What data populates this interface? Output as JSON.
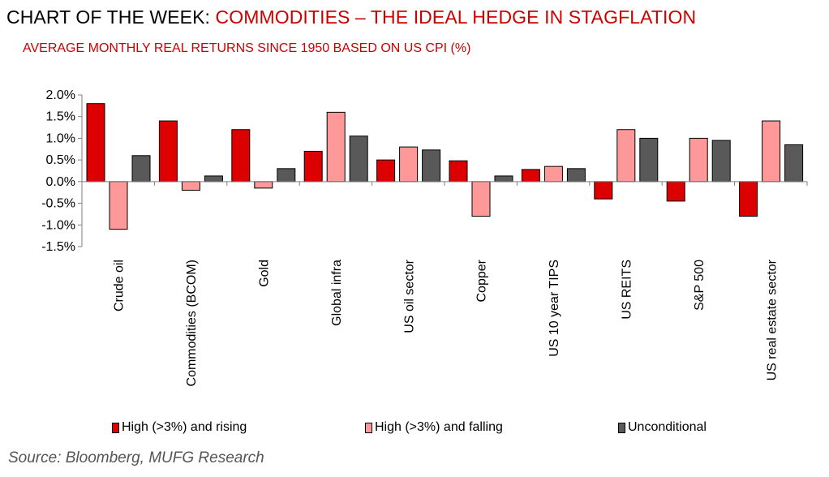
{
  "header": {
    "title_prefix": "CHART OF THE WEEK:",
    "title_highlight": "COMMODITIES – THE IDEAL HEDGE IN STAGFLATION",
    "subtitle": "AVERAGE MONTHLY REAL RETURNS SINCE 1950 BASED ON US CPI (%)"
  },
  "footer": {
    "source": "Source: Bloomberg, MUFG Research"
  },
  "colors": {
    "title_accent": "#cc0000",
    "series_rising": "#dd0000",
    "series_falling": "#ff9999",
    "series_unconditional": "#595959",
    "bar_border": "#000000"
  },
  "chart_data": {
    "type": "bar",
    "title": "",
    "xlabel": "",
    "ylabel": "",
    "ylim": [
      -1.5,
      2.0
    ],
    "ytick_step": 0.5,
    "ytick_labels": [
      "2.0%",
      "1.5%",
      "1.0%",
      "0.5%",
      "0.0%",
      "-0.5%",
      "-1.0%",
      "-1.5%"
    ],
    "grid": false,
    "legend_position": "bottom",
    "categories": [
      "Crude oil",
      "Commodities (BCOM)",
      "Gold",
      "Global infra",
      "US oil sector",
      "Copper",
      "US 10 year TIPS",
      "US REITS",
      "S&P 500",
      "US real estate sector"
    ],
    "series": [
      {
        "name": "High (>3%) and rising",
        "color": "#dd0000",
        "values": [
          1.8,
          1.4,
          1.2,
          0.7,
          0.5,
          0.48,
          0.28,
          -0.4,
          -0.45,
          -0.8
        ]
      },
      {
        "name": "High (>3%) and falling",
        "color": "#ff9999",
        "values": [
          -1.1,
          -0.2,
          -0.15,
          1.6,
          0.8,
          -0.8,
          0.35,
          1.2,
          1.0,
          1.4
        ]
      },
      {
        "name": "Unconditional",
        "color": "#595959",
        "values": [
          0.6,
          0.13,
          0.3,
          1.05,
          0.73,
          0.13,
          0.3,
          1.0,
          0.95,
          0.85
        ]
      }
    ]
  }
}
